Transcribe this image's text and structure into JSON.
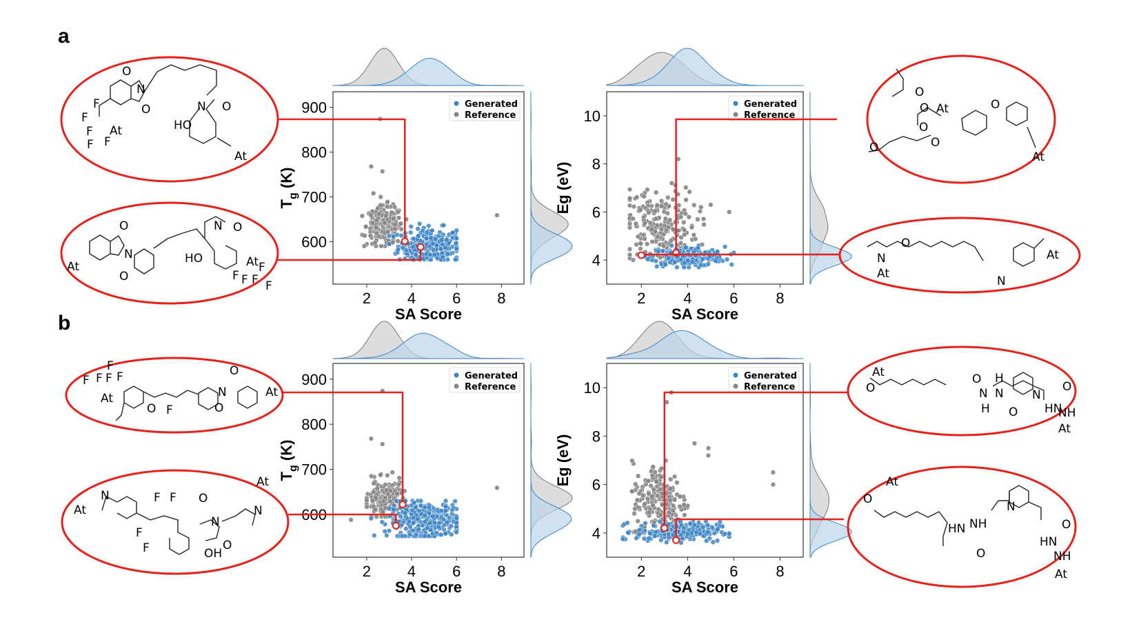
{
  "figure": {
    "panel_labels": [
      "a",
      "b"
    ],
    "colors": {
      "generated": "#3b84c4",
      "reference": "#858585",
      "highlight": "#e8201a",
      "kde_generated_fill": "#bcd4ea",
      "kde_reference_fill": "#cfcfcf"
    }
  },
  "chart_data": [
    {
      "id": "a-tg",
      "type": "scatter",
      "panel": "a",
      "xlabel": "SA Score",
      "ylabel_main": "T",
      "ylabel_sub": "g",
      "ylabel_unit": " (K)",
      "xlim": [
        0.5,
        9.0
      ],
      "ylim": [
        505,
        935
      ],
      "xticks": [
        2,
        4,
        6,
        8
      ],
      "yticks": [
        600,
        700,
        800,
        900
      ],
      "legend": [
        "Generated",
        "Reference"
      ],
      "series": [
        {
          "name": "Generated",
          "clusters": [
            {
              "cx": 4.8,
              "sx": 0.7,
              "xmin": 3.0,
              "xmax": 6.0,
              "cy": 590,
              "sy": 20,
              "ymin": 560,
              "ymax": 650,
              "n": 270
            }
          ]
        },
        {
          "name": "Reference",
          "clusters": [
            {
              "cx": 2.8,
              "sx": 0.4,
              "xmin": 1.8,
              "xmax": 3.9,
              "cy": 635,
              "sy": 22,
              "ymin": 590,
              "ymax": 700,
              "n": 200
            }
          ],
          "outliers": [
            [
              2.6,
              874
            ],
            [
              2.2,
              768
            ],
            [
              2.7,
              757
            ],
            [
              2.3,
              708
            ],
            [
              7.8,
              659
            ]
          ]
        }
      ],
      "highlights": [
        {
          "x": 3.7,
          "y": 601,
          "structure": "bis-imide fluorene (TFE-At)",
          "row": "top"
        },
        {
          "x": 4.4,
          "y": 588,
          "structure": "imide styryl (HO, CF3-At)",
          "row": "bottom"
        }
      ]
    },
    {
      "id": "a-eg",
      "type": "scatter",
      "panel": "a",
      "xlabel": "SA Score",
      "ylabel_main": "Eg",
      "ylabel_sub": "",
      "ylabel_unit": " (eV)",
      "xlim": [
        0.5,
        9.0
      ],
      "ylim": [
        3.0,
        11.0
      ],
      "xticks": [
        2,
        4,
        6,
        8
      ],
      "yticks": [
        4,
        6,
        8,
        10
      ],
      "legend": [
        "Generated",
        "Reference"
      ],
      "series": [
        {
          "name": "Generated",
          "clusters": [
            {
              "cx": 4.0,
              "sx": 0.8,
              "xmin": 2.0,
              "xmax": 6.0,
              "cy": 4.15,
              "sy": 0.2,
              "ymin": 3.7,
              "ymax": 4.6,
              "n": 230
            }
          ]
        },
        {
          "name": "Reference",
          "clusters": [
            {
              "cx": 2.8,
              "sx": 0.8,
              "xmin": 1.5,
              "xmax": 5.0,
              "cy": 5.4,
              "sy": 0.8,
              "ymin": 4.0,
              "ymax": 7.2,
              "n": 210
            }
          ],
          "outliers": [
            [
              3.6,
              8.2
            ],
            [
              5.0,
              6.3
            ],
            [
              5.8,
              6.0
            ]
          ]
        }
      ],
      "highlights": [
        {
          "x": 3.5,
          "y": 4.3,
          "structure": "malonate ether (At)",
          "row": "top"
        },
        {
          "x": 2.0,
          "y": 4.2,
          "structure": "amide amine chain (At)",
          "row": "bottom"
        }
      ]
    },
    {
      "id": "b-tg",
      "type": "scatter",
      "panel": "b",
      "xlabel": "SA Score",
      "ylabel_main": "T",
      "ylabel_sub": "g",
      "ylabel_unit": " (K)",
      "xlim": [
        0.5,
        9.0
      ],
      "ylim": [
        505,
        935
      ],
      "xticks": [
        2,
        4,
        6,
        8
      ],
      "yticks": [
        600,
        700,
        800,
        900
      ],
      "legend": [
        "Generated",
        "Reference"
      ],
      "series": [
        {
          "name": "Generated",
          "clusters": [
            {
              "cx": 4.6,
              "sx": 0.8,
              "xmin": 2.2,
              "xmax": 6.0,
              "cy": 588,
              "sy": 20,
              "ymin": 552,
              "ymax": 630,
              "n": 320
            }
          ]
        },
        {
          "name": "Reference",
          "clusters": [
            {
              "cx": 2.8,
              "sx": 0.4,
              "xmin": 2.0,
              "xmax": 3.7,
              "cy": 635,
              "sy": 20,
              "ymin": 595,
              "ymax": 700,
              "n": 180
            }
          ],
          "outliers": [
            [
              2.7,
              874
            ],
            [
              2.2,
              768
            ],
            [
              2.7,
              756
            ],
            [
              7.8,
              659
            ],
            [
              1.3,
              588
            ]
          ]
        }
      ],
      "highlights": [
        {
          "x": 3.6,
          "y": 622,
          "structure": "imide enone (CF3-At, F)",
          "row": "top"
        },
        {
          "x": 3.3,
          "y": 575,
          "structure": "indolenine imide (CF3, OH, At)",
          "row": "bottom"
        }
      ]
    },
    {
      "id": "b-eg",
      "type": "scatter",
      "panel": "b",
      "xlabel": "SA Score",
      "ylabel_main": "Eg",
      "ylabel_sub": "",
      "ylabel_unit": " (eV)",
      "xlim": [
        0.5,
        9.0
      ],
      "ylim": [
        3.0,
        11.0
      ],
      "xticks": [
        2,
        4,
        6,
        8
      ],
      "yticks": [
        4,
        6,
        8,
        10
      ],
      "legend": [
        "Generated",
        "Reference"
      ],
      "series": [
        {
          "name": "Generated",
          "clusters": [
            {
              "cx": 3.6,
              "sx": 0.9,
              "xmin": 1.2,
              "xmax": 5.8,
              "cy": 4.05,
              "sy": 0.2,
              "ymin": 3.6,
              "ymax": 4.5,
              "n": 230
            }
          ]
        },
        {
          "name": "Reference",
          "clusters": [
            {
              "cx": 2.8,
              "sx": 0.6,
              "xmin": 1.6,
              "xmax": 4.0,
              "cy": 5.3,
              "sy": 0.8,
              "ymin": 4.0,
              "ymax": 7.0,
              "n": 200
            }
          ],
          "outliers": [
            [
              3.3,
              9.8
            ],
            [
              3.1,
              9.4
            ],
            [
              4.3,
              7.7
            ],
            [
              4.9,
              7.5
            ],
            [
              4.9,
              7.2
            ],
            [
              7.7,
              6.5
            ],
            [
              7.7,
              6.0
            ]
          ]
        }
      ],
      "highlights": [
        {
          "x": 3.0,
          "y": 4.2,
          "structure": "hydrazide pyridine (At, O)",
          "row": "top"
        },
        {
          "x": 3.5,
          "y": 3.7,
          "structure": "hydrazide vinylpyridine (At)",
          "row": "bottom"
        }
      ]
    }
  ],
  "molecules": {
    "a_tl": [
      "F",
      "F",
      "F",
      "F",
      "F",
      "At",
      "O",
      "N",
      "O",
      "N",
      "O",
      "HO",
      "At"
    ],
    "a_bl": [
      "At",
      "O",
      "N",
      "O",
      "N",
      "O",
      "HO",
      "At",
      "F",
      "F",
      "F",
      "F",
      "F"
    ],
    "a_tr": [
      "O",
      "O",
      "At",
      "O",
      "O",
      "O",
      "O",
      "At"
    ],
    "a_br": [
      "N",
      "O",
      "At",
      "At",
      "N"
    ],
    "b_tl": [
      "F",
      "F",
      "F",
      "F",
      "F",
      "At",
      "O",
      "F",
      "O",
      "N",
      "O",
      "At"
    ],
    "b_bl": [
      "N",
      "At",
      "F",
      "F",
      "F",
      "F",
      "O",
      "N",
      "O",
      "At",
      "N",
      "OH"
    ],
    "b_tr": [
      "At",
      "O",
      "O",
      "H",
      "N",
      "N",
      "H",
      "N",
      "O",
      "O",
      "HN",
      "NH",
      "At"
    ],
    "b_br": [
      "At",
      "O",
      "HN",
      "NH",
      "N",
      "O",
      "O",
      "HN",
      "NH",
      "At"
    ]
  }
}
